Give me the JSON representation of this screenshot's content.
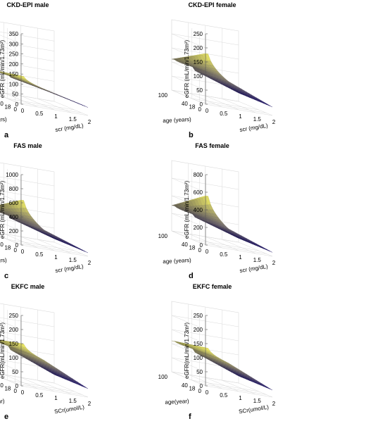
{
  "colors": {
    "surface_low": "#2a1f78",
    "surface_high": "#f2ef63",
    "grid": "#d9d9d9",
    "axis": "#555555"
  },
  "chart_data": [
    {
      "type": "surface",
      "label": "a",
      "title": "CKD-EPI male",
      "zlabel": "eGFR (mL/min/1.73m²)",
      "xlabel": "scr (mg/dL)",
      "ylabel": "age (years)",
      "zlim": [
        0,
        350
      ],
      "zticks": [
        "0",
        "50",
        "100",
        "150",
        "200",
        "250",
        "300",
        "350"
      ],
      "xticks": [
        "0",
        "0.5",
        "1",
        "1.5",
        "2"
      ],
      "yticks": [
        "0",
        "18",
        "40",
        "100"
      ],
      "grid": true,
      "knee": {
        "high_at_young": 140,
        "high_at_old": 105,
        "at_knee": 95,
        "at_max": 40
      }
    },
    {
      "type": "surface",
      "label": "b",
      "title": "CKD-EPI female",
      "zlabel": "eGFR (mL/min/1.73m²)",
      "xlabel": "scr (mg/dL)",
      "ylabel": "age (years)",
      "zlim": [
        0,
        250
      ],
      "zticks": [
        "0",
        "50",
        "100",
        "150",
        "200",
        "250"
      ],
      "xticks": [
        "0",
        "0.5",
        "1",
        "1.5",
        "2"
      ],
      "yticks": [
        "0",
        "18",
        "40",
        "100"
      ],
      "grid": true,
      "knee": {
        "high_at_young": 180,
        "high_at_old": 110,
        "at_knee": 95,
        "at_max": 30
      }
    },
    {
      "type": "surface",
      "label": "c",
      "title": "FAS male",
      "zlabel": "eGFR (mL/min/1.73m²)",
      "xlabel": "scr (mg/dL)",
      "ylabel": "age (years)",
      "zlim": [
        0,
        1000
      ],
      "zticks": [
        "0",
        "200",
        "400",
        "600",
        "800",
        "1000"
      ],
      "xticks": [
        "0",
        "0.5",
        "1",
        "1.5",
        "2"
      ],
      "yticks": [
        "0",
        "18",
        "40",
        "100"
      ],
      "grid": true,
      "knee": {
        "high_at_young": 640,
        "high_at_old": 330,
        "at_knee": 270,
        "at_max": 50
      }
    },
    {
      "type": "surface",
      "label": "d",
      "title": "FAS female",
      "zlabel": "eGFR (mL/min/1.73m²)",
      "xlabel": "scr (mg/dL)",
      "ylabel": "age (years)",
      "zlim": [
        0,
        800
      ],
      "zticks": [
        "0",
        "200",
        "400",
        "600",
        "800"
      ],
      "xticks": [
        "0",
        "0.5",
        "1",
        "1.5",
        "2"
      ],
      "yticks": [
        "0",
        "18",
        "40",
        "100"
      ],
      "grid": true,
      "knee": {
        "high_at_young": 560,
        "high_at_old": 290,
        "at_knee": 230,
        "at_max": 45
      }
    },
    {
      "type": "surface",
      "label": "e",
      "title": "EKFC male",
      "zlabel": "eGFR(mL/min/1.73m²)",
      "xlabel": "SCr(umol/L)",
      "ylabel": "age(year)",
      "zlim": [
        0,
        250
      ],
      "zticks": [
        "0",
        "50",
        "100",
        "150",
        "200",
        "250"
      ],
      "xticks": [
        "0",
        "0.5",
        "1",
        "1.5",
        "2"
      ],
      "yticks": [
        "0",
        "18",
        "40",
        "100"
      ],
      "grid": true,
      "knee": {
        "high_at_young": 150,
        "high_at_old": 120,
        "at_knee": 105,
        "at_max": 30
      }
    },
    {
      "type": "surface",
      "label": "f",
      "title": "EKFC female",
      "zlabel": "eGFR(mL/min/1.73m²)",
      "xlabel": "SCr(umol/L)",
      "ylabel": "age(year)",
      "zlim": [
        0,
        250
      ],
      "zticks": [
        "0",
        "50",
        "100",
        "150",
        "200",
        "250"
      ],
      "xticks": [
        "0",
        "0.5",
        "1",
        "1.5",
        "2"
      ],
      "yticks": [
        "0",
        "18",
        "40",
        "100"
      ],
      "grid": true,
      "knee": {
        "high_at_young": 135,
        "high_at_old": 110,
        "at_knee": 95,
        "at_max": 25
      }
    }
  ]
}
